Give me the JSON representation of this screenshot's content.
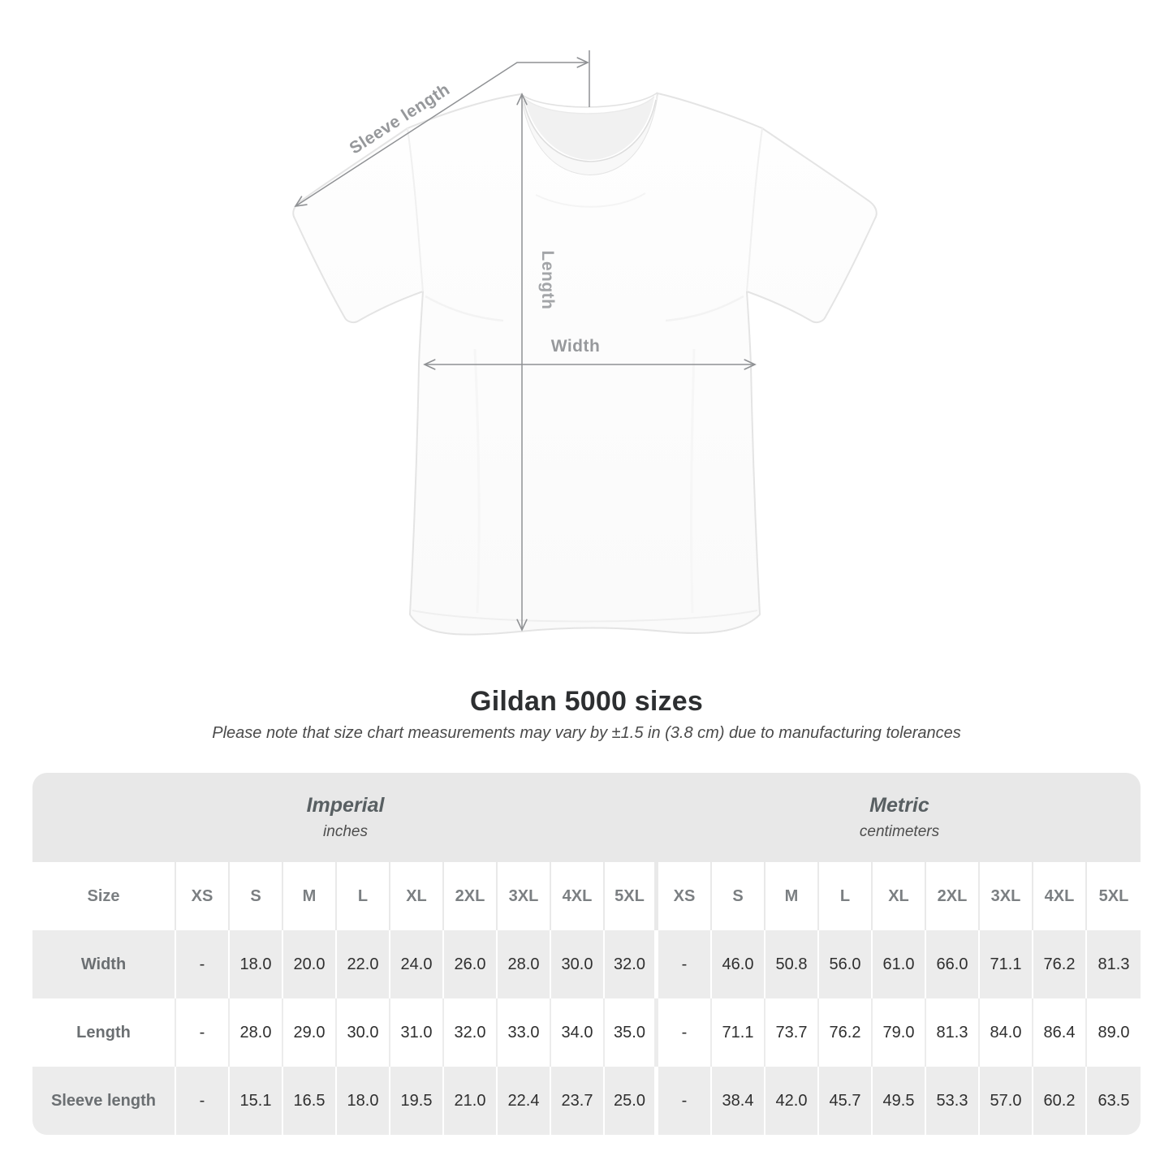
{
  "figure": {
    "labels": {
      "sleeve_length": "Sleeve length",
      "length": "Length",
      "width": "Width"
    }
  },
  "title": "Gildan 5000 sizes",
  "subtitle": "Please note that size chart measurements may vary by ±1.5 in (3.8 cm) due to manufacturing tolerances",
  "table": {
    "corner_label": "Size",
    "groups": [
      {
        "label": "Imperial",
        "unit": "inches"
      },
      {
        "label": "Metric",
        "unit": "centimeters"
      }
    ],
    "sizes": [
      "XS",
      "S",
      "M",
      "L",
      "XL",
      "2XL",
      "3XL",
      "4XL",
      "5XL"
    ],
    "rows": [
      {
        "label": "Width",
        "imperial": [
          "-",
          "18.0",
          "20.0",
          "22.0",
          "24.0",
          "26.0",
          "28.0",
          "30.0",
          "32.0"
        ],
        "metric": [
          "-",
          "46.0",
          "50.8",
          "56.0",
          "61.0",
          "66.0",
          "71.1",
          "76.2",
          "81.3"
        ]
      },
      {
        "label": "Length",
        "imperial": [
          "-",
          "28.0",
          "29.0",
          "30.0",
          "31.0",
          "32.0",
          "33.0",
          "34.0",
          "35.0"
        ],
        "metric": [
          "-",
          "71.1",
          "73.7",
          "76.2",
          "79.0",
          "81.3",
          "84.0",
          "86.4",
          "89.0"
        ]
      },
      {
        "label": "Sleeve length",
        "imperial": [
          "-",
          "15.1",
          "16.5",
          "18.0",
          "19.5",
          "21.0",
          "22.4",
          "23.7",
          "25.0"
        ],
        "metric": [
          "-",
          "38.4",
          "42.0",
          "45.7",
          "49.5",
          "53.3",
          "57.0",
          "60.2",
          "63.5"
        ]
      }
    ]
  },
  "colors": {
    "group_header_bg": "#e8e8e8",
    "stripe_bg": "#ececec",
    "value_text": "#2f2f2f",
    "label_text": "#6b6f72",
    "annotation": "#8f9194"
  },
  "chart_data": {
    "type": "table",
    "title": "Gildan 5000 sizes",
    "note": "Please note that size chart measurements may vary by ±1.5 in (3.8 cm) due to manufacturing tolerances",
    "unit_groups": [
      {
        "name": "Imperial",
        "unit": "inches"
      },
      {
        "name": "Metric",
        "unit": "centimeters"
      }
    ],
    "size_columns": [
      "XS",
      "S",
      "M",
      "L",
      "XL",
      "2XL",
      "3XL",
      "4XL",
      "5XL"
    ],
    "measurements": [
      {
        "label": "Width",
        "imperial_in": [
          null,
          18.0,
          20.0,
          22.0,
          24.0,
          26.0,
          28.0,
          30.0,
          32.0
        ],
        "metric_cm": [
          null,
          46.0,
          50.8,
          56.0,
          61.0,
          66.0,
          71.1,
          76.2,
          81.3
        ]
      },
      {
        "label": "Length",
        "imperial_in": [
          null,
          28.0,
          29.0,
          30.0,
          31.0,
          32.0,
          33.0,
          34.0,
          35.0
        ],
        "metric_cm": [
          null,
          71.1,
          73.7,
          76.2,
          79.0,
          81.3,
          84.0,
          86.4,
          89.0
        ]
      },
      {
        "label": "Sleeve length",
        "imperial_in": [
          null,
          15.1,
          16.5,
          18.0,
          19.5,
          21.0,
          22.4,
          23.7,
          25.0
        ],
        "metric_cm": [
          null,
          38.4,
          42.0,
          45.7,
          49.5,
          53.3,
          57.0,
          60.2,
          63.5
        ]
      }
    ],
    "diagram_measurement_labels": [
      "Sleeve length",
      "Length",
      "Width"
    ]
  }
}
